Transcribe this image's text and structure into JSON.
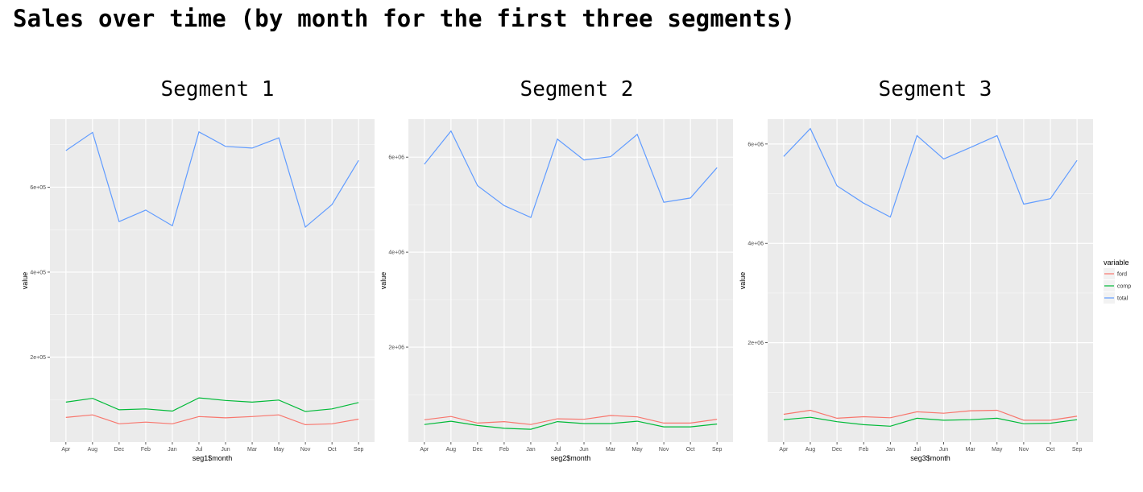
{
  "page_title": "Sales over time (by month for the first three segments)",
  "colors": {
    "ford": "#F8766D",
    "comp": "#00BA38",
    "total": "#619CFF",
    "panel_bg": "#EBEBEB",
    "grid": "#FFFFFF"
  },
  "legend": {
    "title": "variable",
    "placement": "right",
    "items": [
      "ford",
      "comp",
      "total"
    ]
  },
  "chart_data": [
    {
      "type": "line",
      "title": "Segment 1",
      "xlabel": "seg1$month",
      "ylabel": "value",
      "categories": [
        "Apr",
        "Aug",
        "Dec",
        "Feb",
        "Jan",
        "Jul",
        "Jun",
        "Mar",
        "May",
        "Nov",
        "Oct",
        "Sep"
      ],
      "yticks": [
        {
          "v": 200000,
          "label": "2e+05"
        },
        {
          "v": 400000,
          "label": "4e+05"
        },
        {
          "v": 600000,
          "label": "6e+05"
        }
      ],
      "ylim": [
        0,
        760000
      ],
      "grid": true,
      "series": [
        {
          "name": "ford",
          "values": [
            58000,
            64000,
            43000,
            47000,
            43000,
            60000,
            57000,
            60000,
            64000,
            41000,
            43000,
            54000
          ]
        },
        {
          "name": "comp",
          "values": [
            94000,
            103000,
            76000,
            78000,
            73000,
            104000,
            98000,
            94000,
            99000,
            72000,
            78000,
            93000
          ]
        },
        {
          "name": "total",
          "values": [
            686000,
            729000,
            519000,
            546000,
            509000,
            730000,
            696000,
            692000,
            716000,
            506000,
            559000,
            663000
          ]
        }
      ]
    },
    {
      "type": "line",
      "title": "Segment 2",
      "xlabel": "seg2$month",
      "ylabel": "value",
      "categories": [
        "Apr",
        "Aug",
        "Dec",
        "Feb",
        "Jan",
        "Jul",
        "Jun",
        "Mar",
        "May",
        "Nov",
        "Oct",
        "Sep"
      ],
      "yticks": [
        {
          "v": 2000000,
          "label": "2e+06"
        },
        {
          "v": 4000000,
          "label": "4e+06"
        },
        {
          "v": 6000000,
          "label": "6e+06"
        }
      ],
      "ylim": [
        0,
        6800000
      ],
      "grid": true,
      "series": [
        {
          "name": "ford",
          "values": [
            470000,
            540000,
            400000,
            430000,
            370000,
            490000,
            480000,
            560000,
            530000,
            400000,
            400000,
            480000
          ]
        },
        {
          "name": "comp",
          "values": [
            370000,
            440000,
            350000,
            290000,
            270000,
            430000,
            390000,
            390000,
            440000,
            320000,
            320000,
            380000
          ]
        },
        {
          "name": "total",
          "values": [
            5850000,
            6550000,
            5400000,
            4980000,
            4730000,
            6380000,
            5940000,
            6010000,
            6480000,
            5050000,
            5140000,
            5780000
          ]
        }
      ]
    },
    {
      "type": "line",
      "title": "Segment 3",
      "xlabel": "seg3$month",
      "ylabel": "value",
      "categories": [
        "Apr",
        "Aug",
        "Dec",
        "Feb",
        "Jan",
        "Jul",
        "Jun",
        "Mar",
        "May",
        "Nov",
        "Oct",
        "Sep"
      ],
      "yticks": [
        {
          "v": 2000000,
          "label": "2e+06"
        },
        {
          "v": 4000000,
          "label": "4e+06"
        },
        {
          "v": 6000000,
          "label": "6e+06"
        }
      ],
      "ylim": [
        0,
        6500000
      ],
      "grid": true,
      "series": [
        {
          "name": "ford",
          "values": [
            560000,
            640000,
            480000,
            510000,
            490000,
            610000,
            580000,
            630000,
            640000,
            440000,
            440000,
            520000
          ]
        },
        {
          "name": "comp",
          "values": [
            450000,
            500000,
            410000,
            350000,
            320000,
            480000,
            440000,
            450000,
            480000,
            370000,
            380000,
            450000
          ]
        },
        {
          "name": "total",
          "values": [
            5750000,
            6310000,
            5160000,
            4810000,
            4530000,
            6170000,
            5700000,
            5930000,
            6170000,
            4790000,
            4900000,
            5670000
          ]
        }
      ]
    }
  ]
}
